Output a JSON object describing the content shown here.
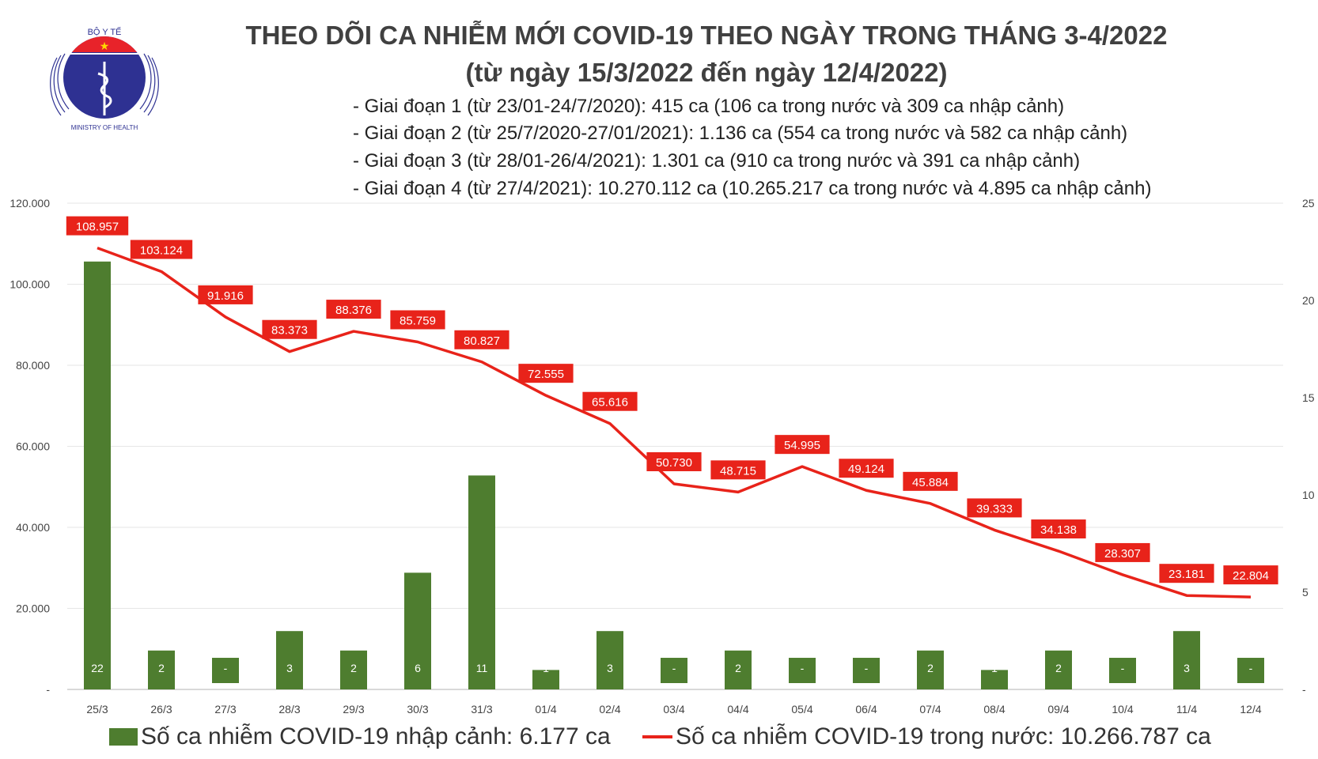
{
  "header": {
    "title": "THEO DÕI CA NHIỄM MỚI COVID-19 THEO NGÀY TRONG THÁNG 3-4/2022",
    "subtitle": "(từ ngày 15/3/2022 đến ngày 12/4/2022)",
    "notes": [
      "- Giai đoạn 1 (từ 23/01-24/7/2020): 415 ca (106 ca trong nước và 309 ca nhập cảnh)",
      "- Giai đoạn 2 (từ 25/7/2020-27/01/2021): 1.136 ca (554 ca trong nước và 582 ca nhập cảnh)",
      "- Giai đoạn 3 (từ 28/01-26/4/2021): 1.301 ca (910 ca trong nước và 391 ca nhập cảnh)",
      "- Giai đoạn 4 (từ 27/4/2021): 10.270.112 ca (10.265.217 ca trong nước và 4.895 ca nhập cảnh)"
    ],
    "logo": {
      "top_text": "BỘ Y TẾ",
      "bottom_text": "MINISTRY OF HEALTH"
    }
  },
  "chart_data": {
    "type": "bar+line",
    "categories": [
      "25/3",
      "26/3",
      "27/3",
      "28/3",
      "29/3",
      "30/3",
      "31/3",
      "01/4",
      "02/4",
      "03/4",
      "04/4",
      "05/4",
      "06/4",
      "07/4",
      "08/4",
      "09/4",
      "10/4",
      "11/4",
      "12/4"
    ],
    "series": [
      {
        "name": "Số ca nhiễm COVID-19 nhập cảnh: 6.177 ca",
        "type": "bar",
        "axis": "right",
        "color": "#4e7d2f",
        "values": [
          22,
          2,
          0,
          3,
          2,
          6,
          11,
          1,
          3,
          0,
          2,
          0,
          0,
          2,
          1,
          2,
          0,
          3,
          0
        ],
        "labels": [
          "22",
          "2",
          "-",
          "3",
          "2",
          "6",
          "11",
          "1",
          "3",
          "-",
          "2",
          "-",
          "-",
          "2",
          "1",
          "2",
          "-",
          "3",
          "-"
        ]
      },
      {
        "name": "Số ca nhiễm COVID-19 trong nước: 10.266.787 ca",
        "type": "line",
        "axis": "left",
        "color": "#e8231a",
        "values": [
          108957,
          103124,
          91916,
          83373,
          88376,
          85759,
          80827,
          72555,
          65616,
          50730,
          48715,
          54995,
          49124,
          45884,
          39333,
          34138,
          28307,
          23181,
          22804
        ],
        "labels": [
          "108.957",
          "103.124",
          "91.916",
          "83.373",
          "88.376",
          "85.759",
          "80.827",
          "72.555",
          "65.616",
          "50.730",
          "48.715",
          "54.995",
          "49.124",
          "45.884",
          "39.333",
          "34.138",
          "28.307",
          "23.181",
          "22.804"
        ]
      }
    ],
    "left_axis": {
      "ylim": [
        0,
        120000
      ],
      "ticks": [
        "-",
        "20.000",
        "40.000",
        "60.000",
        "80.000",
        "100.000",
        "120.000"
      ]
    },
    "right_axis": {
      "ylim": [
        0,
        25
      ],
      "ticks": [
        "-",
        "5",
        "10",
        "15",
        "20",
        "25"
      ]
    },
    "grid": true,
    "legend": "bottom"
  }
}
